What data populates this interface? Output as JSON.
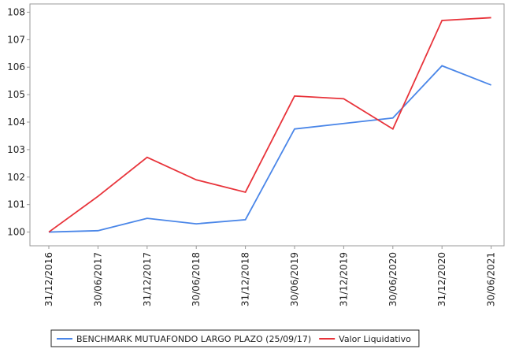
{
  "chart_data": {
    "type": "line",
    "categories": [
      "31/12/2016",
      "30/06/2017",
      "31/12/2017",
      "30/06/2018",
      "31/12/2018",
      "30/06/2019",
      "31/12/2019",
      "30/06/2020",
      "31/12/2020",
      "30/06/2021"
    ],
    "series": [
      {
        "name": "BENCHMARK MUTUAFONDO LARGO PLAZO (25/09/17)",
        "color": "#4a86e8",
        "values": [
          100,
          100.05,
          100.5,
          100.3,
          100.45,
          103.75,
          103.95,
          104.15,
          106.05,
          105.35
        ]
      },
      {
        "name": "Valor Liquidativo",
        "color": "#e8333a",
        "values": [
          100,
          101.3,
          102.72,
          101.9,
          101.45,
          104.95,
          104.85,
          103.75,
          107.7,
          107.8
        ]
      }
    ],
    "ylim": [
      99.5,
      108.3
    ],
    "yticks": [
      100,
      101,
      102,
      103,
      104,
      105,
      106,
      107,
      108
    ],
    "legend": "bottom"
  }
}
